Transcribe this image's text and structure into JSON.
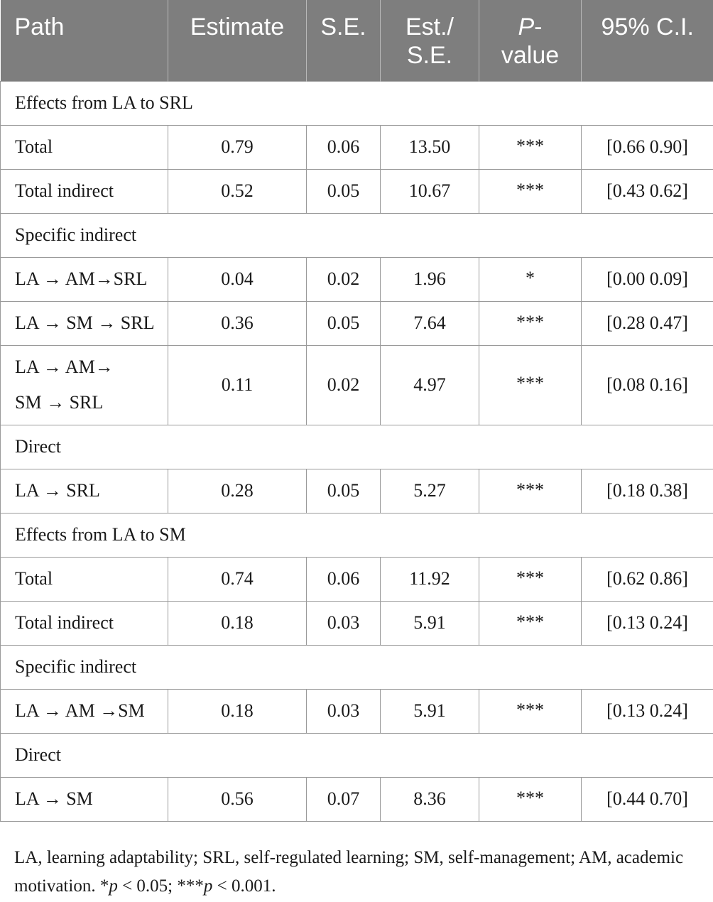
{
  "headers": {
    "path": "Path",
    "estimate": "Estimate",
    "se": "S.E.",
    "est_se_1": "Est./",
    "est_se_2": "S.E.",
    "p_1": "P",
    "p_2": "-",
    "p_3": "value",
    "ci": "95% C.I."
  },
  "sections": {
    "s1": "Effects from LA to SRL",
    "s1_specific": "Specific indirect",
    "s1_direct": "Direct",
    "s2": "Effects from LA to SM",
    "s2_specific": "Specific indirect",
    "s2_direct": "Direct"
  },
  "rows": [
    {
      "path": "Total",
      "estimate": "0.79",
      "se": "0.06",
      "est_se": "13.50",
      "p": "***",
      "ci": "[0.66 0.90]"
    },
    {
      "path": "Total indirect",
      "estimate": "0.52",
      "se": "0.05",
      "est_se": "10.67",
      "p": "***",
      "ci": "[0.43 0.62]"
    },
    {
      "path": "LA → AM→SRL",
      "estimate": "0.04",
      "se": "0.02",
      "est_se": "1.96",
      "p": "*",
      "ci": "[0.00 0.09]"
    },
    {
      "path": "LA → SM → SRL",
      "estimate": "0.36",
      "se": "0.05",
      "est_se": "7.64",
      "p": "***",
      "ci": "[0.28 0.47]"
    },
    {
      "path_1": "LA → AM→",
      "path_2": "SM → SRL",
      "estimate": "0.11",
      "se": "0.02",
      "est_se": "4.97",
      "p": "***",
      "ci": "[0.08 0.16]"
    },
    {
      "path": "LA → SRL",
      "estimate": "0.28",
      "se": "0.05",
      "est_se": "5.27",
      "p": "***",
      "ci": "[0.18 0.38]"
    },
    {
      "path": "Total",
      "estimate": "0.74",
      "se": "0.06",
      "est_se": "11.92",
      "p": "***",
      "ci": "[0.62 0.86]"
    },
    {
      "path": "Total indirect",
      "estimate": "0.18",
      "se": "0.03",
      "est_se": "5.91",
      "p": "***",
      "ci": "[0.13 0.24]"
    },
    {
      "path": "LA → AM →SM",
      "estimate": "0.18",
      "se": "0.03",
      "est_se": "5.91",
      "p": "***",
      "ci": "[0.13 0.24]"
    },
    {
      "path": "LA → SM",
      "estimate": "0.56",
      "se": "0.07",
      "est_se": "8.36",
      "p": "***",
      "ci": "[0.44 0.70]"
    }
  ],
  "footnote": {
    "text": "LA, learning adaptability; SRL, self-regulated learning; SM, self-management; AM, academic motivation. ",
    "star1": "*",
    "p1": "p",
    "t1": " < 0.05; ",
    "star3": "***",
    "p2": "p",
    "t2": " < 0.001."
  }
}
